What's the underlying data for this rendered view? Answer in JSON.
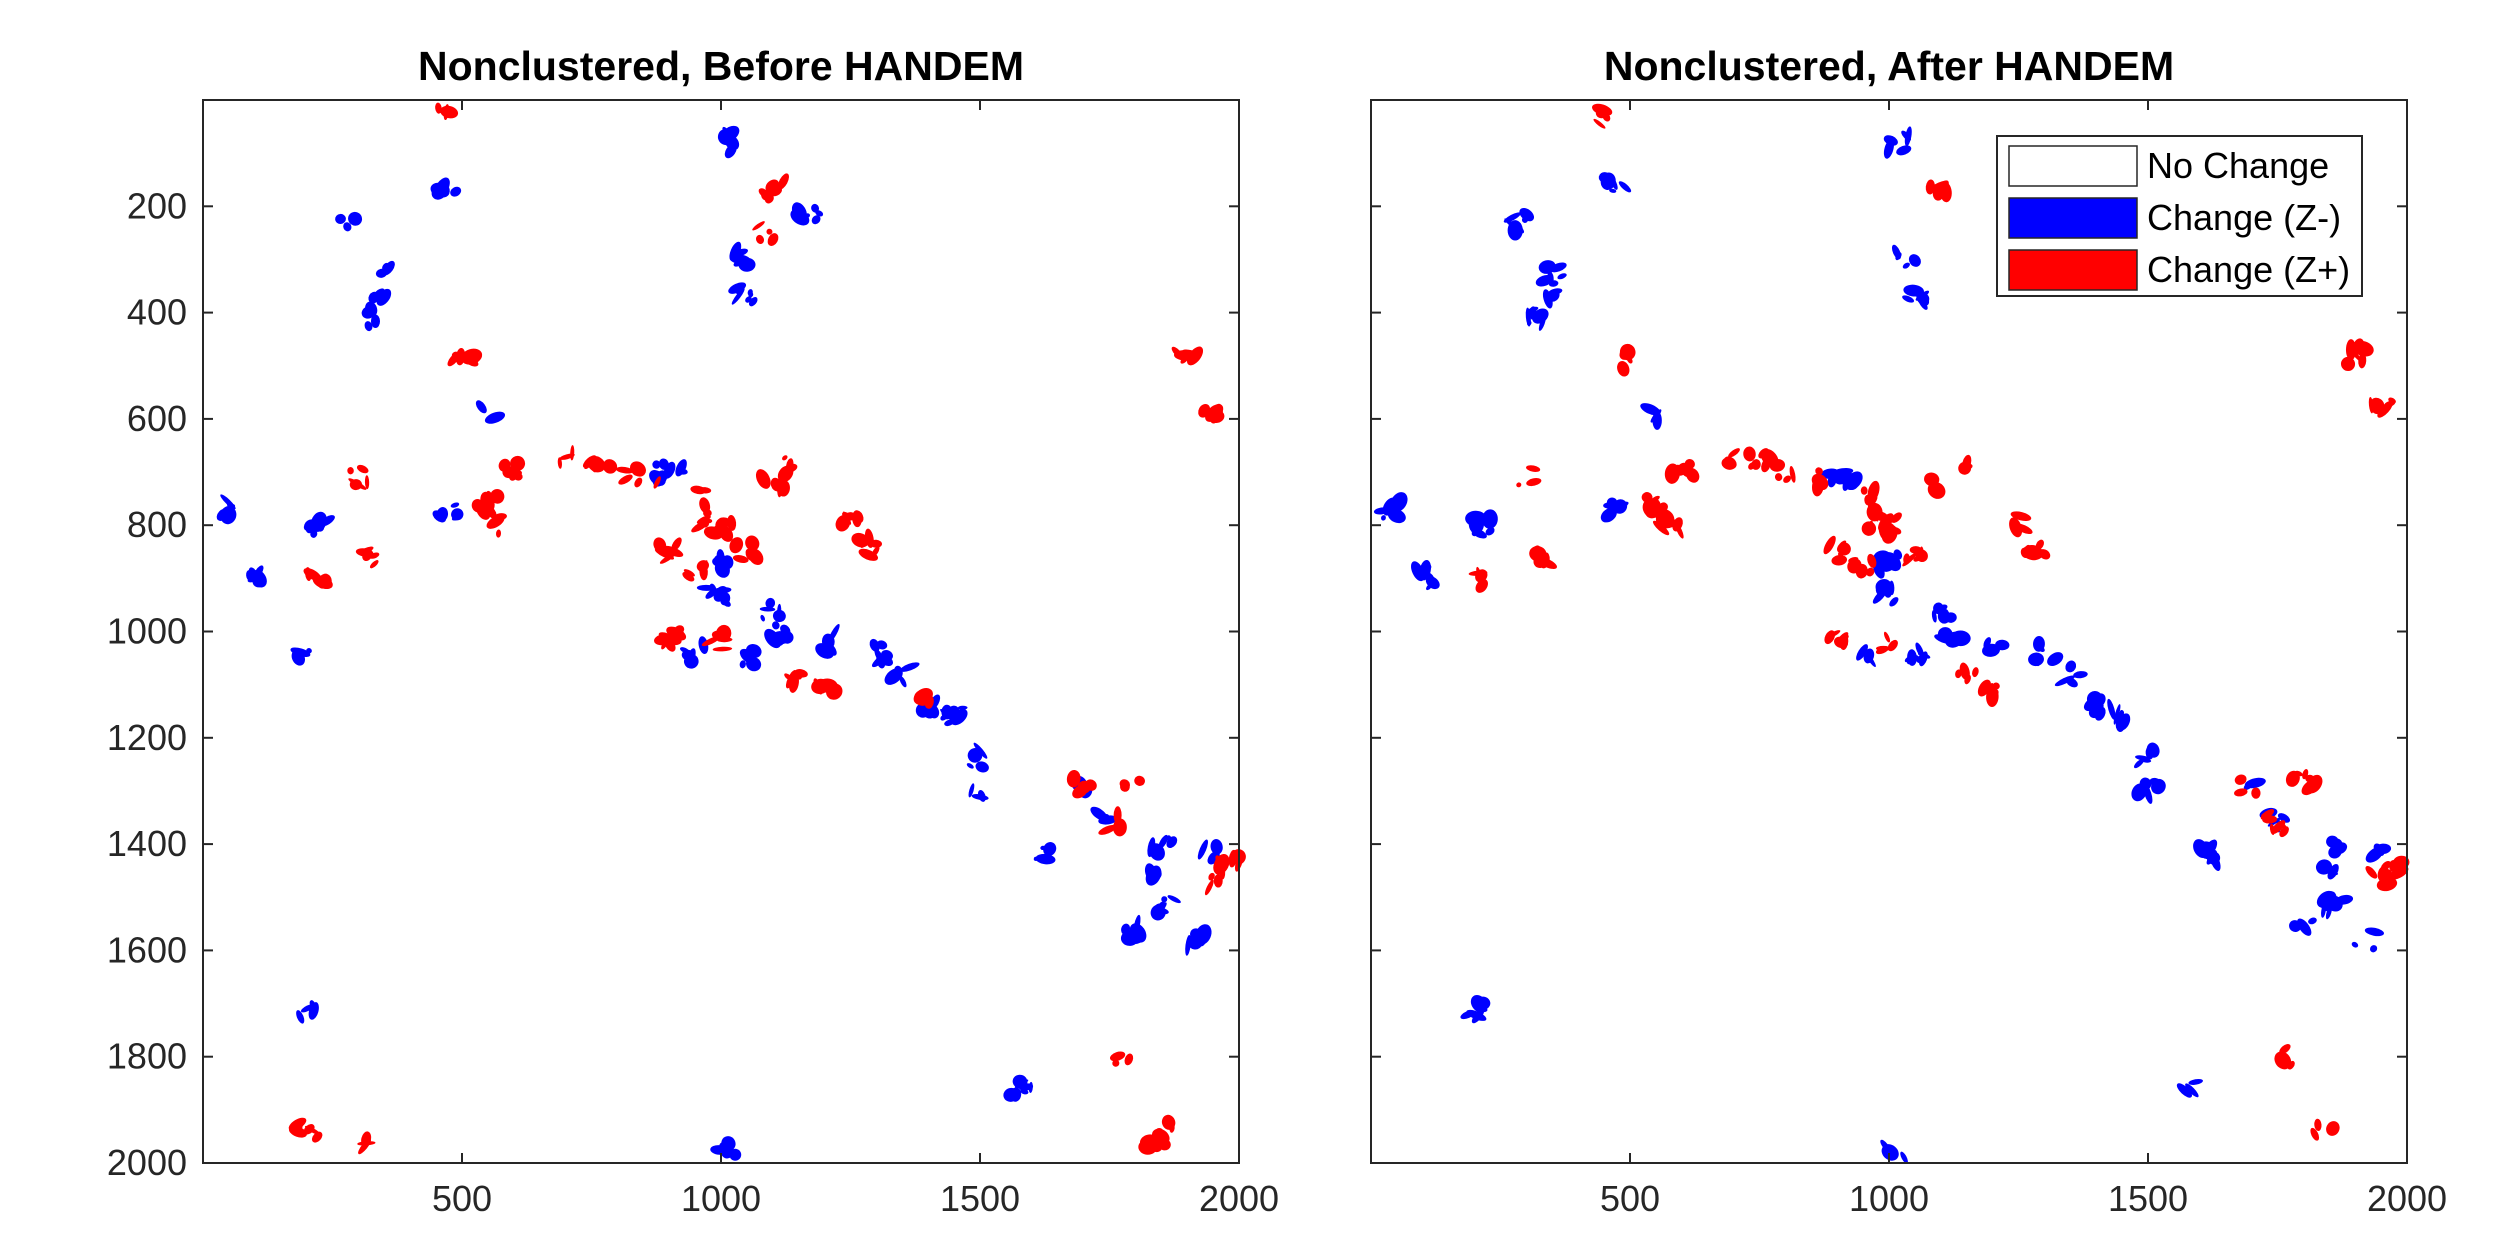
{
  "chart_data": [
    {
      "type": "heatmap",
      "title": "Nonclustered, Before HANDEM",
      "xlim": [
        0,
        2000
      ],
      "ylim": [
        0,
        2000
      ],
      "y_reversed": true,
      "xticks": [
        500,
        1000,
        1500,
        2000
      ],
      "yticks": [
        200,
        400,
        600,
        800,
        1000,
        1200,
        1400,
        1600,
        1800,
        2000
      ],
      "classes": [
        {
          "name": "No Change",
          "color": "#ffffff"
        },
        {
          "name": "Change (Z-)",
          "color": "#0000ff"
        },
        {
          "name": "Change (Z+)",
          "color": "#ff0000"
        }
      ],
      "change_patches_zminus": [
        [
          470,
          160
        ],
        [
          280,
          230
        ],
        [
          355,
          330
        ],
        [
          350,
          370
        ],
        [
          320,
          410
        ],
        [
          40,
          770
        ],
        [
          100,
          900
        ],
        [
          200,
          1040
        ],
        [
          220,
          800
        ],
        [
          470,
          770
        ],
        [
          550,
          590
        ],
        [
          890,
          700
        ],
        [
          920,
          705
        ],
        [
          1020,
          80
        ],
        [
          1030,
          300
        ],
        [
          1050,
          370
        ],
        [
          1170,
          220
        ],
        [
          1000,
          870
        ],
        [
          990,
          930
        ],
        [
          1100,
          960
        ],
        [
          950,
          1040
        ],
        [
          1050,
          1050
        ],
        [
          1120,
          1000
        ],
        [
          1200,
          1020
        ],
        [
          1300,
          1040
        ],
        [
          1350,
          1080
        ],
        [
          1400,
          1140
        ],
        [
          1450,
          1160
        ],
        [
          1500,
          1240
        ],
        [
          1500,
          1300
        ],
        [
          1620,
          1420
        ],
        [
          1700,
          1300
        ],
        [
          1750,
          1350
        ],
        [
          1850,
          1400
        ],
        [
          1850,
          1450
        ],
        [
          1860,
          1520
        ],
        [
          1800,
          1560
        ],
        [
          1920,
          1580
        ],
        [
          1950,
          1420
        ],
        [
          1010,
          1980
        ],
        [
          200,
          1710
        ],
        [
          1580,
          1860
        ]
      ],
      "change_patches_zplus": [
        [
          460,
          30
        ],
        [
          500,
          490
        ],
        [
          550,
          760
        ],
        [
          580,
          800
        ],
        [
          600,
          700
        ],
        [
          700,
          670
        ],
        [
          750,
          680
        ],
        [
          800,
          700
        ],
        [
          860,
          710
        ],
        [
          950,
          750
        ],
        [
          980,
          790
        ],
        [
          1000,
          800
        ],
        [
          900,
          850
        ],
        [
          950,
          880
        ],
        [
          1050,
          850
        ],
        [
          1100,
          720
        ],
        [
          1130,
          690
        ],
        [
          1100,
          170
        ],
        [
          1080,
          250
        ],
        [
          320,
          860
        ],
        [
          300,
          710
        ],
        [
          220,
          900
        ],
        [
          1280,
          840
        ],
        [
          1250,
          800
        ],
        [
          900,
          1010
        ],
        [
          1000,
          1020
        ],
        [
          1150,
          1090
        ],
        [
          1200,
          1110
        ],
        [
          1400,
          1120
        ],
        [
          1700,
          1290
        ],
        [
          1750,
          1360
        ],
        [
          1800,
          1280
        ],
        [
          1950,
          1470
        ],
        [
          1980,
          1440
        ],
        [
          1780,
          1800
        ],
        [
          1840,
          1960
        ],
        [
          1860,
          1940
        ],
        [
          200,
          1940
        ],
        [
          300,
          1960
        ],
        [
          1900,
          480
        ],
        [
          1950,
          580
        ]
      ]
    },
    {
      "type": "heatmap",
      "title": "Nonclustered, After HANDEM",
      "xlim": [
        0,
        2000
      ],
      "ylim": [
        0,
        2000
      ],
      "y_reversed": true,
      "xticks": [
        500,
        1000,
        1500,
        2000
      ],
      "yticks": [
        200,
        400,
        600,
        800,
        1000,
        1200,
        1400,
        1600,
        1800,
        2000
      ],
      "legend": {
        "position": "top-right",
        "entries": [
          "No Change",
          "Change (Z-)",
          "Change (Z+)"
        ]
      },
      "classes": [
        {
          "name": "No Change",
          "color": "#ffffff"
        },
        {
          "name": "Change (Z-)",
          "color": "#0000ff"
        },
        {
          "name": "Change (Z+)",
          "color": "#ff0000"
        }
      ],
      "change_patches_zminus": [
        [
          470,
          160
        ],
        [
          280,
          230
        ],
        [
          355,
          330
        ],
        [
          350,
          370
        ],
        [
          320,
          410
        ],
        [
          40,
          770
        ],
        [
          100,
          900
        ],
        [
          220,
          800
        ],
        [
          470,
          770
        ],
        [
          550,
          590
        ],
        [
          890,
          700
        ],
        [
          920,
          705
        ],
        [
          1020,
          80
        ],
        [
          1030,
          300
        ],
        [
          1050,
          370
        ],
        [
          1000,
          870
        ],
        [
          990,
          930
        ],
        [
          1100,
          960
        ],
        [
          950,
          1040
        ],
        [
          1050,
          1050
        ],
        [
          1120,
          1000
        ],
        [
          1200,
          1020
        ],
        [
          1300,
          1040
        ],
        [
          1350,
          1080
        ],
        [
          1400,
          1140
        ],
        [
          1450,
          1160
        ],
        [
          1500,
          1240
        ],
        [
          1500,
          1300
        ],
        [
          1620,
          1420
        ],
        [
          1700,
          1300
        ],
        [
          1750,
          1350
        ],
        [
          1850,
          1400
        ],
        [
          1850,
          1450
        ],
        [
          1860,
          1520
        ],
        [
          1800,
          1560
        ],
        [
          1920,
          1580
        ],
        [
          1950,
          1420
        ],
        [
          1010,
          1980
        ],
        [
          200,
          1710
        ],
        [
          1580,
          1860
        ]
      ],
      "change_patches_zplus": [
        [
          460,
          30
        ],
        [
          500,
          490
        ],
        [
          550,
          760
        ],
        [
          580,
          800
        ],
        [
          600,
          700
        ],
        [
          700,
          670
        ],
        [
          750,
          680
        ],
        [
          800,
          700
        ],
        [
          860,
          710
        ],
        [
          950,
          750
        ],
        [
          980,
          790
        ],
        [
          1000,
          800
        ],
        [
          900,
          850
        ],
        [
          950,
          880
        ],
        [
          1050,
          850
        ],
        [
          1100,
          720
        ],
        [
          1130,
          690
        ],
        [
          1100,
          170
        ],
        [
          320,
          860
        ],
        [
          300,
          710
        ],
        [
          220,
          900
        ],
        [
          1280,
          840
        ],
        [
          1250,
          800
        ],
        [
          900,
          1010
        ],
        [
          1000,
          1020
        ],
        [
          1150,
          1090
        ],
        [
          1200,
          1110
        ],
        [
          1700,
          1290
        ],
        [
          1750,
          1360
        ],
        [
          1800,
          1280
        ],
        [
          1950,
          1470
        ],
        [
          1980,
          1440
        ],
        [
          1780,
          1800
        ],
        [
          1840,
          1930
        ],
        [
          1900,
          480
        ],
        [
          1950,
          580
        ]
      ]
    }
  ]
}
